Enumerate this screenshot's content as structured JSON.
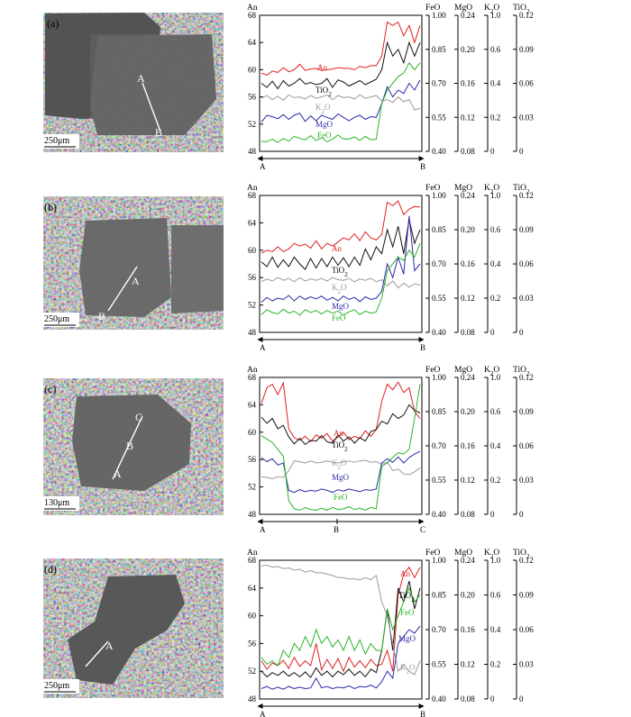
{
  "figure_title": "Plagioclase phenocryst BSE images and core-to-rim compositional profiles",
  "axis_headers": {
    "an": "An",
    "feo": "FeO",
    "mgo": "MgO",
    "k2o": "K2O",
    "tio2": "TiO2"
  },
  "colors": {
    "An": "#e02020",
    "TiO2": "#111111",
    "K2O": "#9a9a9a",
    "MgO": "#2a2aa8",
    "FeO": "#28b428"
  },
  "axis_ticks": {
    "an": [
      "68",
      "64",
      "60",
      "56",
      "52",
      "48"
    ],
    "feo": [
      "1.00",
      "0.85",
      "0.70",
      "0.55",
      "0.40"
    ],
    "mgo": [
      "0.24",
      "0.20",
      "0.16",
      "0.12",
      "0.08"
    ],
    "k2o": [
      "1.0",
      "0.6",
      "0.4",
      "0.2",
      "0"
    ],
    "tio2": [
      "0.12",
      "0.09",
      "0.06",
      "0.03",
      "0"
    ]
  },
  "panels": [
    {
      "id": "a",
      "label": "(a)",
      "scale_bar": "250μm",
      "image_points": [
        "A",
        "B"
      ],
      "profile_ends": [
        "A",
        "B"
      ],
      "series_labels": {
        "An": "An",
        "TiO2": "TiO2",
        "K2O": "K2O",
        "MgO": "MgO",
        "FeO": "FeO"
      },
      "chart_data": {
        "type": "line",
        "title": "",
        "xlabel": "A → B",
        "ylabel": "An",
        "ylim": [
          48,
          68
        ],
        "series_plot_units": "An-scale equivalent of each secondary axis",
        "series": [
          {
            "name": "An",
            "values": [
              59.5,
              59.2,
              59.8,
              59.6,
              60.3,
              59.7,
              60,
              60.8,
              59.9,
              60.1,
              60.2,
              59.9,
              60,
              60.1,
              60.3,
              60.2,
              60.2,
              60,
              60.5,
              60.3,
              60.6,
              60.6,
              62,
              67,
              66.5,
              67,
              65,
              66.5,
              64,
              66.5
            ]
          },
          {
            "name": "TiO2",
            "values": [
              58,
              57.4,
              58.3,
              57.2,
              58.4,
              57.6,
              58,
              58.7,
              57.9,
              58.1,
              57.8,
              58,
              58.7,
              57.4,
              58.5,
              58.2,
              57.6,
              58,
              58.4,
              57.8,
              58.2,
              58.6,
              60,
              64,
              62,
              63,
              61,
              64,
              62,
              64
            ]
          },
          {
            "name": "K2O",
            "values": [
              55.8,
              56.2,
              55.6,
              56.1,
              55.5,
              56.3,
              55.9,
              56,
              55.7,
              56.2,
              55.8,
              56,
              56.3,
              55.6,
              56.2,
              55.9,
              56,
              55.7,
              56.3,
              55.8,
              56,
              56.2,
              55.4,
              55.6,
              55.2,
              56,
              55.3,
              55.6,
              54.1,
              54.3
            ]
          },
          {
            "name": "MgO",
            "values": [
              52.3,
              53.3,
              53.1,
              52.8,
              53.4,
              52.7,
              53.3,
              53.6,
              52.4,
              53.2,
              52.5,
              53.3,
              53,
              52.7,
              53.5,
              53,
              52.5,
              53,
              53.3,
              52.7,
              53.1,
              53,
              55,
              57.5,
              56,
              57,
              56.5,
              58,
              57,
              58.5
            ]
          },
          {
            "name": "FeO",
            "values": [
              49.5,
              49.4,
              49.8,
              49.3,
              49.9,
              49.5,
              50.2,
              49.9,
              49.7,
              50.3,
              49.6,
              50,
              49.4,
              49.8,
              50.4,
              49.8,
              49.8,
              50.1,
              49.6,
              50.2,
              49.7,
              49.8,
              55,
              57,
              58,
              59,
              59.5,
              61,
              60,
              61
            ]
          }
        ],
        "secondary_axes": {
          "FeO": [
            0.4,
            1.0
          ],
          "MgO": [
            0.08,
            0.24
          ],
          "K2O": [
            0,
            1.0
          ],
          "TiO2": [
            0,
            0.12
          ]
        }
      }
    },
    {
      "id": "b",
      "label": "(b)",
      "scale_bar": "250μm",
      "image_points": [
        "A",
        "B"
      ],
      "profile_ends": [
        "A",
        "B"
      ],
      "series_labels": {
        "An": "An",
        "TiO2": "TiO2",
        "K2O": "K2O",
        "MgO": "MgO",
        "FeO": "FeO"
      },
      "chart_data": {
        "type": "line",
        "title": "",
        "xlabel": "A → B",
        "ylabel": "An",
        "ylim": [
          48,
          68
        ],
        "series": [
          {
            "name": "An",
            "values": [
              59.6,
              60,
              59.8,
              60.5,
              59.8,
              60.2,
              61,
              60.6,
              60.9,
              60.3,
              61.4,
              60.2,
              61,
              60.6,
              61.2,
              61.8,
              61.5,
              62.4,
              61.4,
              62.7,
              61.8,
              61.5,
              62.3,
              67,
              66.5,
              67.2,
              65.2,
              66,
              66.4,
              66.3
            ]
          },
          {
            "name": "TiO2",
            "values": [
              58.3,
              57.6,
              59,
              57.5,
              58.6,
              57.6,
              59,
              58,
              57.2,
              58.8,
              57.4,
              58.8,
              57.6,
              59,
              57.8,
              58.9,
              57.6,
              59,
              57.8,
              60.2,
              58.6,
              60.5,
              59.5,
              63,
              60.5,
              63.5,
              59.5,
              64.5,
              61,
              63
            ]
          },
          {
            "name": "K2O",
            "values": [
              55.4,
              55.8,
              55.5,
              56,
              55.6,
              55.9,
              55.4,
              56,
              55.5,
              55.8,
              55.6,
              55.9,
              55.5,
              56,
              55.7,
              55.6,
              55.9,
              55.4,
              55.8,
              55.6,
              55.9,
              55.4,
              55.7,
              54.8,
              55.5,
              54.5,
              55.2,
              54.6,
              55.1,
              54.9
            ]
          },
          {
            "name": "MgO",
            "values": [
              52.4,
              53.1,
              52.6,
              53,
              52.8,
              53.4,
              52.6,
              53.3,
              52.8,
              53.2,
              52.9,
              53.3,
              52.7,
              53.1,
              52.6,
              53.3,
              52.8,
              53.1,
              52.5,
              53.2,
              52.8,
              53,
              54,
              58,
              56,
              59,
              56.5,
              65,
              57,
              58
            ]
          },
          {
            "name": "FeO",
            "values": [
              50.6,
              51.3,
              50.9,
              50.7,
              51.4,
              50.8,
              51.1,
              50.5,
              51.3,
              50.9,
              51.2,
              50.7,
              51.2,
              50.8,
              51.1,
              50.5,
              51,
              51.3,
              50.6,
              51.1,
              50.8,
              51,
              53,
              57,
              58,
              59,
              58.5,
              60,
              59,
              61
            ]
          }
        ],
        "secondary_axes": {
          "FeO": [
            0.4,
            1.0
          ],
          "MgO": [
            0.08,
            0.24
          ],
          "K2O": [
            0,
            1.0
          ],
          "TiO2": [
            0,
            0.12
          ]
        }
      }
    },
    {
      "id": "c",
      "label": "(c)",
      "scale_bar": "130μm",
      "image_points": [
        "C",
        "B",
        "A"
      ],
      "profile_ends": [
        "A",
        "B",
        "C"
      ],
      "series_labels": {
        "An": "An",
        "TiO2": "TiO2",
        "K2O": "K2O",
        "MgO": "MgO",
        "FeO": "FeO"
      },
      "chart_data": {
        "type": "line",
        "title": "",
        "xlabel": "A → B → C",
        "ylabel": "An",
        "ylim": [
          48,
          68
        ],
        "series": [
          {
            "name": "An",
            "values": [
              64.2,
              66.5,
              67,
              65.5,
              67.2,
              60.5,
              59.2,
              58.8,
              59.4,
              58.6,
              59.6,
              59.1,
              59.8,
              58.7,
              59.3,
              60,
              58.9,
              59.4,
              59.1,
              60.2,
              59.4,
              60.4,
              64.5,
              67,
              66.2,
              67.3,
              65.8,
              66.5,
              63,
              62
            ]
          },
          {
            "name": "TiO2",
            "values": [
              62.2,
              61.3,
              62,
              60.5,
              61,
              59.3,
              58.3,
              59.1,
              58.2,
              58.8,
              58.7,
              59.5,
              58.6,
              58.4,
              59.6,
              58.7,
              59.3,
              58.4,
              59.2,
              58.7,
              60.1,
              60.4,
              61.6,
              61.2,
              62.7,
              62,
              62.5,
              64,
              63.2,
              62.8
            ]
          },
          {
            "name": "K2O",
            "values": [
              53.5,
              53.4,
              53.2,
              53.5,
              53.4,
              54.4,
              55.8,
              55.7,
              55.5,
              55.8,
              55.5,
              55.6,
              55.8,
              55.6,
              55.5,
              55.7,
              55.8,
              55.6,
              55.8,
              55.9,
              55.6,
              55.7,
              55.3,
              55.6,
              54.4,
              54.6,
              53.9,
              53.8,
              54.2,
              54.8
            ]
          },
          {
            "name": "MgO",
            "values": [
              56.3,
              55.7,
              56.1,
              55.2,
              55.5,
              51.5,
              51.2,
              51.6,
              51.3,
              51.5,
              51.4,
              51.7,
              51.5,
              51.2,
              51.6,
              51.4,
              51.7,
              51.5,
              51.3,
              51.6,
              51.5,
              51.7,
              55.5,
              56.1,
              55.6,
              56.4,
              55.5,
              56.3,
              56.8,
              57.2
            ]
          },
          {
            "name": "FeO",
            "values": [
              59.5,
              59,
              58.5,
              57.5,
              56.5,
              50,
              48.8,
              48.6,
              49,
              48.7,
              48.6,
              48.9,
              48.6,
              49,
              48.7,
              48.8,
              49.1,
              48.7,
              48.9,
              48.6,
              49,
              48.8,
              55,
              55.5,
              56.3,
              57,
              56.8,
              57.5,
              62,
              67
            ]
          }
        ],
        "secondary_axes": {
          "FeO": [
            0.4,
            1.0
          ],
          "MgO": [
            0.08,
            0.24
          ],
          "K2O": [
            0,
            1.0
          ],
          "TiO2": [
            0,
            0.12
          ]
        }
      }
    },
    {
      "id": "d",
      "label": "(d)",
      "scale_bar": "250μm",
      "image_points": [
        "A"
      ],
      "profile_ends": [
        "A",
        "B"
      ],
      "series_labels": {
        "An": "An",
        "TiO2": "TiO2",
        "K2O": "K2O",
        "MgO": "MgO",
        "FeO": "FeO"
      },
      "chart_data": {
        "type": "line",
        "title": "",
        "xlabel": "A → B",
        "ylabel": "An",
        "ylim": [
          48,
          68
        ],
        "series": [
          {
            "name": "An",
            "values": [
              53.5,
              52.3,
              53.2,
              52.8,
              53.6,
              52.4,
              54,
              52.7,
              53.5,
              52.8,
              56,
              52.2,
              53.7,
              52.4,
              53.8,
              52,
              54,
              52.6,
              53.5,
              52.5,
              53.7,
              52.8,
              53,
              55,
              52,
              63,
              66,
              67,
              65.5,
              67
            ]
          },
          {
            "name": "TiO2",
            "values": [
              52,
              51.2,
              51.8,
              51.4,
              52,
              51.3,
              51.8,
              51.2,
              51.9,
              51.1,
              52.5,
              51.4,
              52,
              51.2,
              52,
              51.5,
              52.3,
              51.4,
              52,
              51.2,
              52.3,
              51.8,
              55,
              61,
              55,
              64,
              62,
              65,
              61,
              64
            ]
          },
          {
            "name": "K2O",
            "values": [
              67.2,
              67.3,
              67,
              67.1,
              66.8,
              66.9,
              66.6,
              66.7,
              66.3,
              66.5,
              66.2,
              66.2,
              66,
              65.8,
              65.5,
              65.5,
              65.3,
              65.3,
              65.2,
              65.5,
              65.2,
              65.8,
              62,
              60,
              56,
              52,
              53,
              52,
              51.5,
              53.5
            ]
          },
          {
            "name": "MgO",
            "values": [
              49.5,
              49.8,
              49.4,
              49.7,
              49.4,
              49.8,
              49.5,
              49.7,
              49.5,
              49.6,
              51,
              49.6,
              49.8,
              49.5,
              49.7,
              49.6,
              49.9,
              49.5,
              49.8,
              49.7,
              50,
              49.6,
              50.5,
              52,
              51,
              56,
              57,
              58,
              57.5,
              58.5
            ]
          },
          {
            "name": "FeO",
            "values": [
              54,
              53,
              53.5,
              52.8,
              55,
              54,
              56,
              55,
              57,
              55.5,
              58,
              56,
              57,
              55.5,
              56.5,
              55,
              57,
              55,
              56.5,
              54.5,
              56,
              55,
              55,
              61,
              58,
              60,
              62,
              64,
              62,
              63
            ]
          }
        ],
        "secondary_axes": {
          "FeO": [
            0.4,
            1.0
          ],
          "MgO": [
            0.08,
            0.24
          ],
          "K2O": [
            0,
            1.0
          ],
          "TiO2": [
            0,
            0.12
          ]
        }
      }
    }
  ]
}
